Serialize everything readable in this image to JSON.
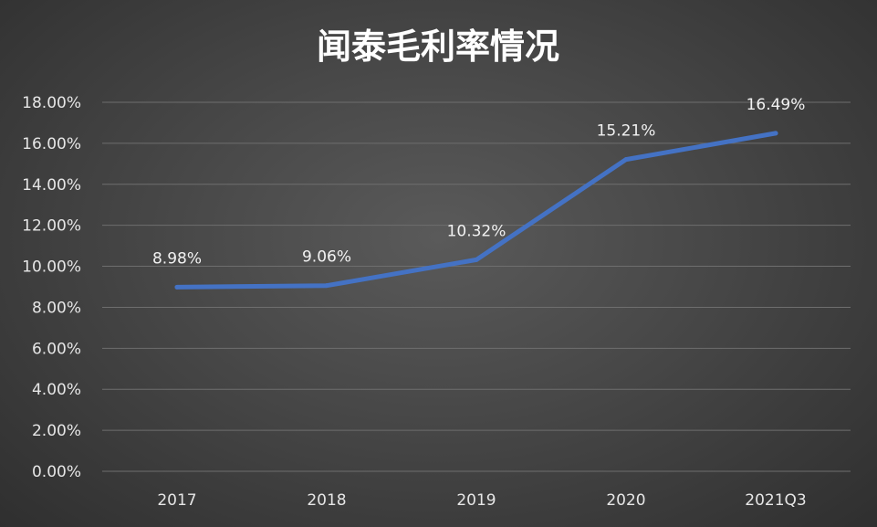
{
  "chart_data": {
    "type": "line",
    "title": "闻泰毛利率情况",
    "categories": [
      "2017",
      "2018",
      "2019",
      "2020",
      "2021Q3"
    ],
    "series": [
      {
        "values": [
          8.98,
          9.06,
          10.32,
          15.21,
          16.49
        ],
        "labels": [
          "8.98%",
          "9.06%",
          "10.32%",
          "15.21%",
          "16.49%"
        ]
      }
    ],
    "yticks": [
      "0.00%",
      "2.00%",
      "4.00%",
      "6.00%",
      "8.00%",
      "10.00%",
      "12.00%",
      "14.00%",
      "16.00%",
      "18.00%"
    ],
    "ylim": [
      0,
      18
    ],
    "grid": true,
    "legend": "none",
    "line_color": "#4472C4"
  }
}
